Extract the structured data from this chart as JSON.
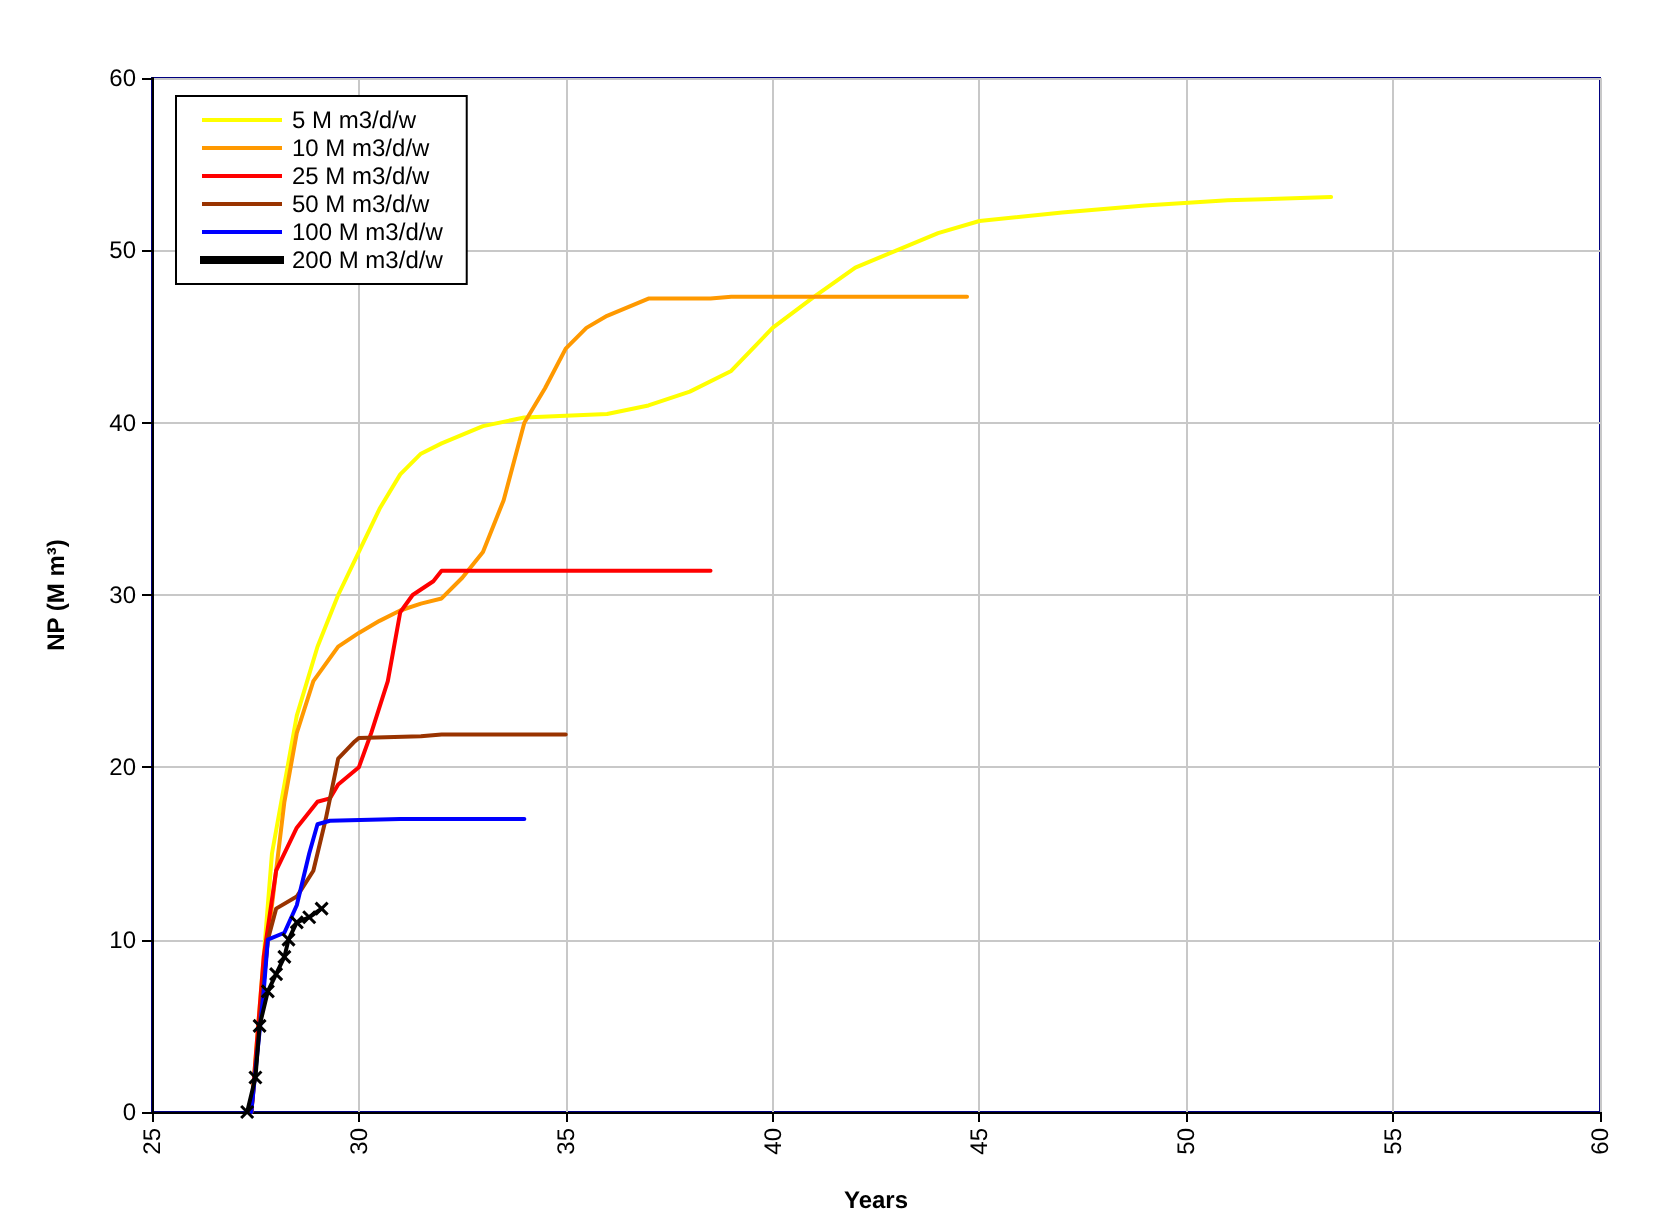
{
  "chart_data": {
    "type": "line",
    "xlabel": "Years",
    "ylabel": "NP (M m³)",
    "xlim": [
      25,
      60
    ],
    "xticks": [
      25,
      30,
      35,
      40,
      45,
      50,
      55,
      60
    ],
    "ylim": [
      0,
      60
    ],
    "yticks": [
      0,
      10,
      20,
      30,
      40,
      50,
      60
    ],
    "grid": true,
    "legend": "top left",
    "marker": "none",
    "series": [
      {
        "name": "5 M m3/d/w",
        "color": "#ffff00",
        "x": [
          27.4,
          27.9,
          28.5,
          29,
          29.5,
          30,
          30.5,
          31,
          31.5,
          32,
          33,
          34,
          36,
          37,
          38,
          39,
          40,
          41,
          42,
          43,
          44,
          45,
          47,
          49,
          51,
          53.5
        ],
        "values": [
          0,
          15,
          23,
          27,
          30,
          32.5,
          35,
          37,
          38.2,
          38.8,
          39.8,
          40.3,
          40.5,
          41,
          41.8,
          43,
          45.5,
          47.3,
          49,
          50,
          51,
          51.7,
          52.2,
          52.6,
          52.9,
          53.1
        ]
      },
      {
        "name": "10 M m3/d/w",
        "color": "#ff9900",
        "x": [
          27.4,
          27.8,
          28.2,
          28.5,
          28.9,
          29.5,
          30,
          30.5,
          31,
          31.5,
          32,
          32.5,
          33,
          33.5,
          34,
          34.5,
          35,
          35.5,
          36,
          37,
          38.5,
          39,
          44.7
        ],
        "values": [
          0,
          10,
          18,
          22,
          25,
          27,
          27.8,
          28.5,
          29.1,
          29.5,
          29.8,
          31,
          32.5,
          35.5,
          40,
          42,
          44.3,
          45.5,
          46.2,
          47.2,
          47.2,
          47.3,
          47.3
        ]
      },
      {
        "name": "25 M m3/d/w",
        "color": "#ff0000",
        "x": [
          27.4,
          27.7,
          28,
          28.5,
          29,
          29.3,
          29.5,
          30,
          30.3,
          30.7,
          31,
          31.3,
          31.8,
          32,
          38.5
        ],
        "values": [
          0,
          9,
          14,
          16.5,
          18,
          18.2,
          19,
          20,
          22,
          25,
          29,
          30,
          30.8,
          31.4,
          31.4
        ]
      },
      {
        "name": "50 M m3/d/w",
        "color": "#993300",
        "x": [
          27.4,
          27.8,
          28,
          28.5,
          28.9,
          29.2,
          29.5,
          29.9,
          30,
          31.5,
          32,
          35
        ],
        "values": [
          0,
          10,
          11.8,
          12.5,
          14,
          17,
          20.5,
          21.5,
          21.7,
          21.8,
          21.9,
          21.9
        ]
      },
      {
        "name": "100 M m3/d/w",
        "color": "#0000ff",
        "x": [
          27.4,
          27.7,
          27.8,
          28.2,
          28.5,
          28.8,
          29,
          29.3,
          31,
          34
        ],
        "values": [
          0,
          7,
          10,
          10.4,
          12,
          15,
          16.7,
          16.9,
          17,
          17
        ]
      },
      {
        "name": "200 M m3/d/w",
        "color": "#000000",
        "marker": "cross",
        "x": [
          27.3,
          27.5,
          27.6,
          27.8,
          28,
          28.2,
          28.3,
          28.5,
          28.8,
          29.1
        ],
        "values": [
          0,
          2,
          5,
          7,
          8,
          9,
          10,
          11,
          11.3,
          11.8
        ]
      }
    ]
  }
}
